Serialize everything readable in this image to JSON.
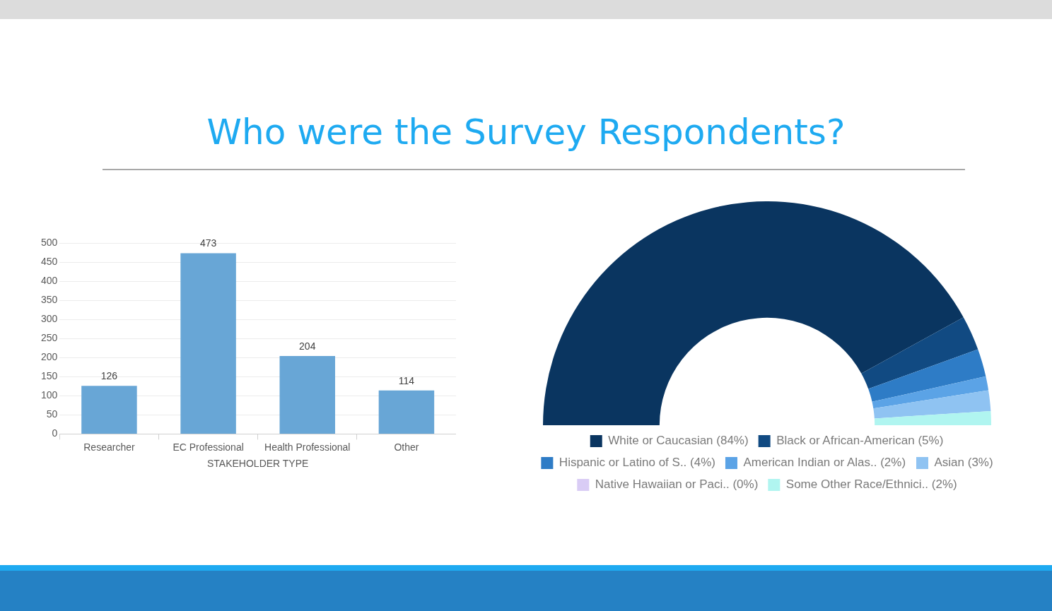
{
  "chart_data": [
    {
      "type": "bar",
      "title": "Who were the Survey Respondents?",
      "xlabel": "STAKEHOLDER TYPE",
      "categories": [
        "Researcher",
        "EC Professional",
        "Health Professional",
        "Other"
      ],
      "values": [
        126,
        473,
        204,
        114
      ],
      "color": "#68a6d6",
      "ylim": [
        0,
        500
      ],
      "yticks": [
        0,
        50,
        100,
        150,
        200,
        250,
        300,
        350,
        400,
        450,
        500
      ],
      "grid": "y",
      "data_labels": true,
      "legend": false
    },
    {
      "type": "donut",
      "categories": [
        "White or Caucasian (84%)",
        "Black or African-American (5%)",
        "Hispanic or Latino of S.. (4%)",
        "American Indian or Alas.. (2%)",
        "Asian (3%)",
        "Native Hawaiian or Paci.. (0%)",
        "Some Other Race/Ethnici.. (2%)"
      ],
      "values": [
        84,
        5,
        4,
        2,
        3,
        0,
        2
      ],
      "colors": [
        "#0a3560",
        "#114a82",
        "#2e7cc6",
        "#5ba3e6",
        "#8fc3f2",
        "#d9ccf5",
        "#b0f5f0"
      ],
      "legend": "bottom"
    }
  ]
}
